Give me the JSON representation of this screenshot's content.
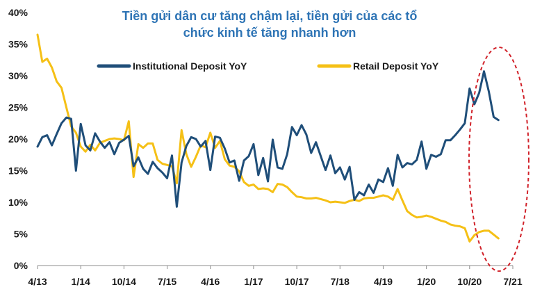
{
  "chart_data": {
    "type": "line",
    "title_lines": [
      "Tiền gửi dân cư tăng chậm lại, tiền gửi của các tổ",
      "chức kinh tế tăng nhanh hơn"
    ],
    "xlabel": "",
    "ylabel": "",
    "x_tick_labels": [
      "4/13",
      "1/14",
      "10/14",
      "7/15",
      "4/16",
      "1/17",
      "10/17",
      "7/18",
      "4/19",
      "1/20",
      "10/20",
      "7/21"
    ],
    "x_range": [
      0,
      99
    ],
    "ylim": [
      0,
      40
    ],
    "y_ticks": [
      0,
      5,
      10,
      15,
      20,
      25,
      30,
      35,
      40
    ],
    "y_tick_labels": [
      "0%",
      "5%",
      "10%",
      "15%",
      "20%",
      "25%",
      "30%",
      "35%",
      "40%"
    ],
    "grid": false,
    "legend_position": "top",
    "highlight": "dashed red ellipse around the last months (10/20 to 7/21)",
    "series": [
      {
        "name": "Institutional Deposit YoY",
        "color": "#1f4e79",
        "values": [
          18.8,
          20.3,
          20.6,
          19.0,
          20.8,
          22.5,
          23.4,
          23.2,
          15.0,
          22.4,
          19.0,
          18.2,
          20.9,
          19.6,
          18.6,
          19.5,
          17.6,
          19.4,
          19.9,
          20.5,
          15.7,
          17.1,
          15.3,
          14.5,
          16.4,
          15.4,
          14.7,
          13.8,
          17.4,
          9.3,
          16.3,
          18.9,
          20.3,
          20.0,
          18.8,
          19.7,
          15.1,
          20.4,
          20.2,
          18.5,
          16.3,
          16.6,
          13.4,
          16.6,
          17.3,
          19.2,
          14.3,
          17.0,
          13.3,
          19.9,
          15.5,
          15.3,
          17.6,
          21.9,
          20.6,
          22.2,
          20.7,
          17.8,
          19.5,
          17.3,
          15.1,
          17.4,
          14.6,
          15.5,
          13.6,
          15.6,
          10.4,
          11.6,
          11.1,
          12.8,
          11.5,
          13.6,
          13.2,
          15.4,
          12.6,
          17.5,
          15.5,
          16.2,
          16.0,
          16.7,
          19.6,
          15.3,
          17.5,
          17.2,
          17.6,
          19.8,
          19.8,
          20.6,
          21.5,
          22.5,
          28.0,
          25.5,
          27.3,
          30.7,
          27.5,
          23.5,
          23.0
        ]
      },
      {
        "name": "Retail Deposit YoY",
        "color": "#f5c016",
        "values": [
          36.5,
          32.2,
          32.7,
          31.3,
          29.1,
          28.1,
          25.0,
          22.0,
          21.0,
          18.8,
          18.0,
          19.1,
          18.2,
          19.4,
          19.7,
          20.0,
          20.1,
          20.0,
          19.8,
          22.8,
          14.0,
          19.2,
          18.6,
          19.3,
          19.3,
          16.7,
          16.1,
          15.9,
          15.7,
          13.0,
          21.4,
          17.6,
          15.6,
          17.2,
          19.0,
          18.7,
          21.0,
          18.6,
          19.7,
          16.8,
          15.8,
          15.6,
          14.9,
          13.2,
          12.6,
          12.8,
          12.1,
          12.2,
          12.1,
          11.6,
          12.9,
          12.8,
          12.4,
          11.6,
          10.9,
          10.8,
          10.6,
          10.6,
          10.7,
          10.5,
          10.3,
          10.0,
          10.1,
          10.0,
          9.9,
          10.2,
          10.4,
          10.2,
          10.6,
          10.7,
          10.7,
          10.9,
          11.1,
          10.9,
          10.4,
          12.1,
          10.3,
          8.6,
          8.0,
          7.6,
          7.7,
          7.9,
          7.7,
          7.4,
          7.1,
          6.9,
          6.5,
          6.3,
          6.2,
          5.9,
          3.8,
          4.8,
          5.3,
          5.5,
          5.5,
          4.9,
          4.3
        ]
      }
    ]
  }
}
